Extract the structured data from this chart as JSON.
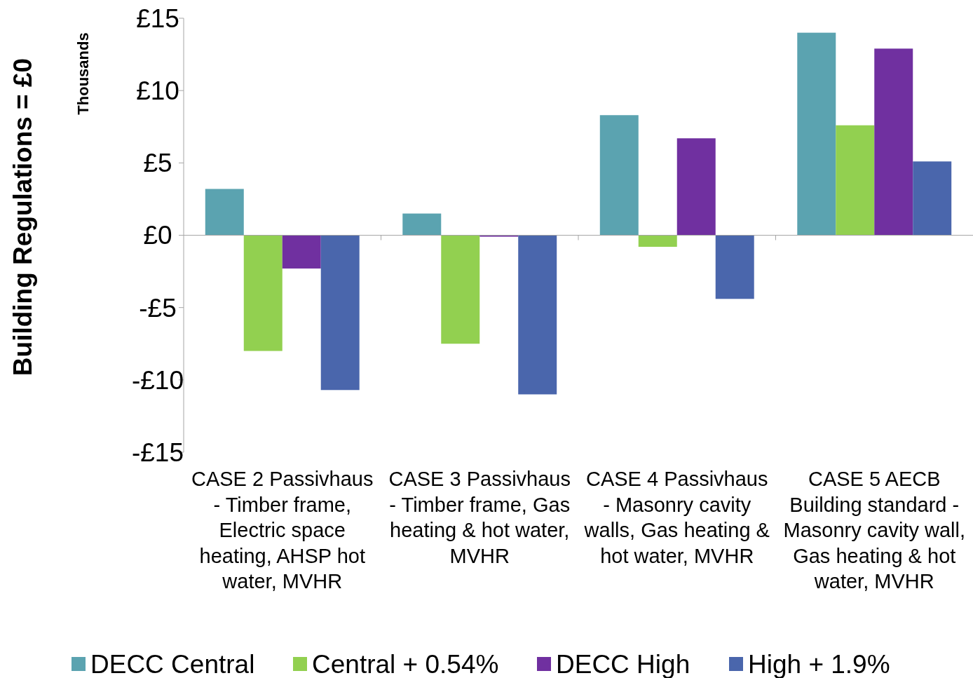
{
  "chart_data": {
    "type": "bar",
    "ylabel": "Building Regulations = £0",
    "annotations": [
      "Thousands"
    ],
    "categories": [
      "CASE 2 Passivhaus - Timber frame, Electric space heating, AHSP hot water, MVHR",
      "CASE 3 Passivhaus - Timber frame, Gas heating & hot water, MVHR",
      "CASE 4 Passivhaus - Masonry cavity walls, Gas heating & hot water, MVHR",
      "CASE 5 AECB Building standard - Masonry cavity wall, Gas heating & hot water, MVHR"
    ],
    "series": [
      {
        "name": "DECC Central",
        "color": "#5ba3b0",
        "values": [
          3.2,
          1.5,
          8.3,
          14.0
        ]
      },
      {
        "name": "Central + 0.54%",
        "color": "#92d050",
        "values": [
          -8.0,
          -7.5,
          -0.8,
          7.6
        ]
      },
      {
        "name": "DECC High",
        "color": "#7030a0",
        "values": [
          -2.3,
          -0.1,
          6.7,
          12.9
        ]
      },
      {
        "name": "High + 1.9%",
        "color": "#4a66ac",
        "values": [
          -10.7,
          -11.0,
          -4.4,
          5.1
        ]
      }
    ],
    "ylim": [
      -15,
      15
    ],
    "yticks": [
      {
        "value": -15,
        "label": "-£15"
      },
      {
        "value": -10,
        "label": "-£10"
      },
      {
        "value": -5,
        "label": "-£5"
      },
      {
        "value": 0,
        "label": "£0"
      },
      {
        "value": 5,
        "label": "£5"
      },
      {
        "value": 10,
        "label": "£10"
      },
      {
        "value": 15,
        "label": "£15"
      }
    ],
    "legend": "bottom"
  }
}
